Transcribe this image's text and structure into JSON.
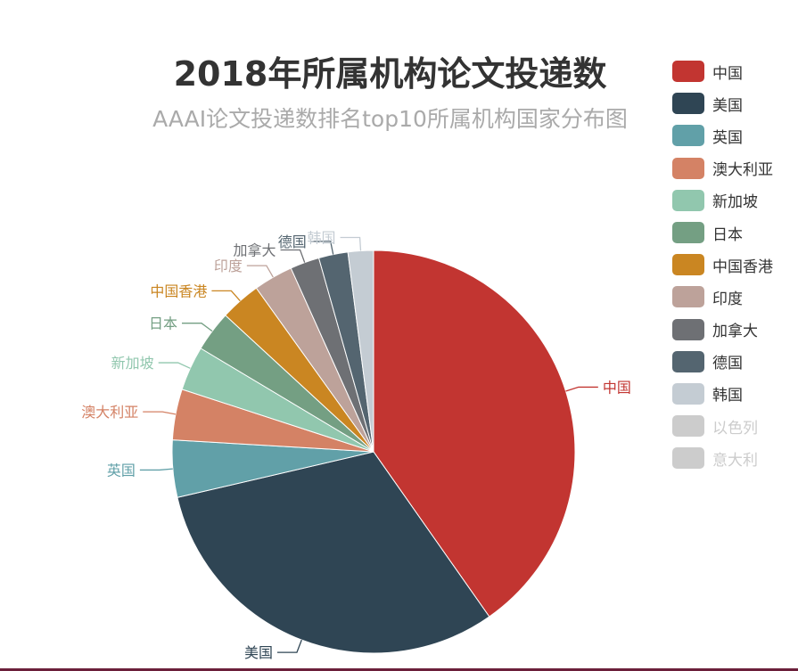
{
  "chart_data": {
    "type": "pie",
    "title": "2018年所属机构论文投递数",
    "subtitle": "AAAI论文投递数排名top10所属机构国家分布图",
    "legend_position": "right",
    "slices": [
      {
        "name": "中国",
        "value": 39.5,
        "color": "#c23531"
      },
      {
        "name": "美国",
        "value": 30.5,
        "color": "#2f4554"
      },
      {
        "name": "英国",
        "value": 4.5,
        "color": "#61a0a8"
      },
      {
        "name": "澳大利亚",
        "value": 4.0,
        "color": "#d48265"
      },
      {
        "name": "新加坡",
        "value": 3.5,
        "color": "#91c7ae"
      },
      {
        "name": "日本",
        "value": 3.2,
        "color": "#749f83"
      },
      {
        "name": "中国香港",
        "value": 3.2,
        "color": "#ca8622"
      },
      {
        "name": "印度",
        "value": 3.1,
        "color": "#bda29a"
      },
      {
        "name": "加拿大",
        "value": 2.3,
        "color": "#6e7074"
      },
      {
        "name": "德国",
        "value": 2.3,
        "color": "#546570"
      },
      {
        "name": "韩国",
        "value": 2.0,
        "color": "#c4ccd3"
      }
    ],
    "legend": [
      {
        "name": "中国",
        "color": "#c23531",
        "active": true
      },
      {
        "name": "美国",
        "color": "#2f4554",
        "active": true
      },
      {
        "name": "英国",
        "color": "#61a0a8",
        "active": true
      },
      {
        "name": "澳大利亚",
        "color": "#d48265",
        "active": true
      },
      {
        "name": "新加坡",
        "color": "#91c7ae",
        "active": true
      },
      {
        "name": "日本",
        "color": "#749f83",
        "active": true
      },
      {
        "name": "中国香港",
        "color": "#ca8622",
        "active": true
      },
      {
        "name": "印度",
        "color": "#bda29a",
        "active": true
      },
      {
        "name": "加拿大",
        "color": "#6e7074",
        "active": true
      },
      {
        "name": "德国",
        "color": "#546570",
        "active": true
      },
      {
        "name": "韩国",
        "color": "#c4ccd3",
        "active": true
      },
      {
        "name": "以色列",
        "color": "#cccccc",
        "active": false
      },
      {
        "name": "意大利",
        "color": "#cccccc",
        "active": false
      }
    ]
  }
}
